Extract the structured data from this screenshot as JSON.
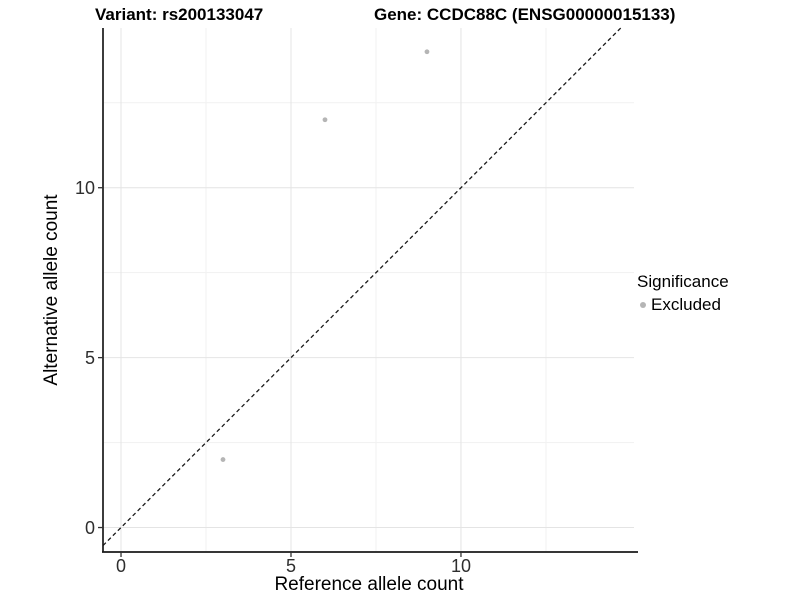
{
  "chart_data": {
    "type": "scatter",
    "title_left": "Variant: rs200133047",
    "title_right": "Gene: CCDC88C (ENSG00000015133)",
    "xlabel": "Reference allele count",
    "ylabel": "Alternative allele count",
    "x_ticks": [
      0,
      5,
      10
    ],
    "y_ticks": [
      0,
      5,
      10
    ],
    "x_minor_ticks": [
      2.5,
      7.5,
      12.5
    ],
    "y_minor_ticks": [
      2.5,
      7.5,
      12.5
    ],
    "xlim": [
      -0.53,
      15.09
    ],
    "ylim": [
      -0.72,
      14.7
    ],
    "grid": {
      "major_color": "#e4e4e4",
      "minor_color": "#f1f1f1",
      "background": "#ffffff"
    },
    "axis_color": "#1a1a1a",
    "series": [
      {
        "name": "Excluded",
        "color": "#b5b5b5",
        "points": [
          {
            "x": 3,
            "y": 2
          },
          {
            "x": 6,
            "y": 12
          },
          {
            "x": 9,
            "y": 14
          }
        ]
      }
    ],
    "reference_line": {
      "type": "identity",
      "style": "dashed",
      "color": "#1a1a1a"
    },
    "legend": {
      "title": "Significance",
      "position": "right",
      "items": [
        {
          "label": "Excluded",
          "color": "#b5b5b5"
        }
      ]
    }
  }
}
